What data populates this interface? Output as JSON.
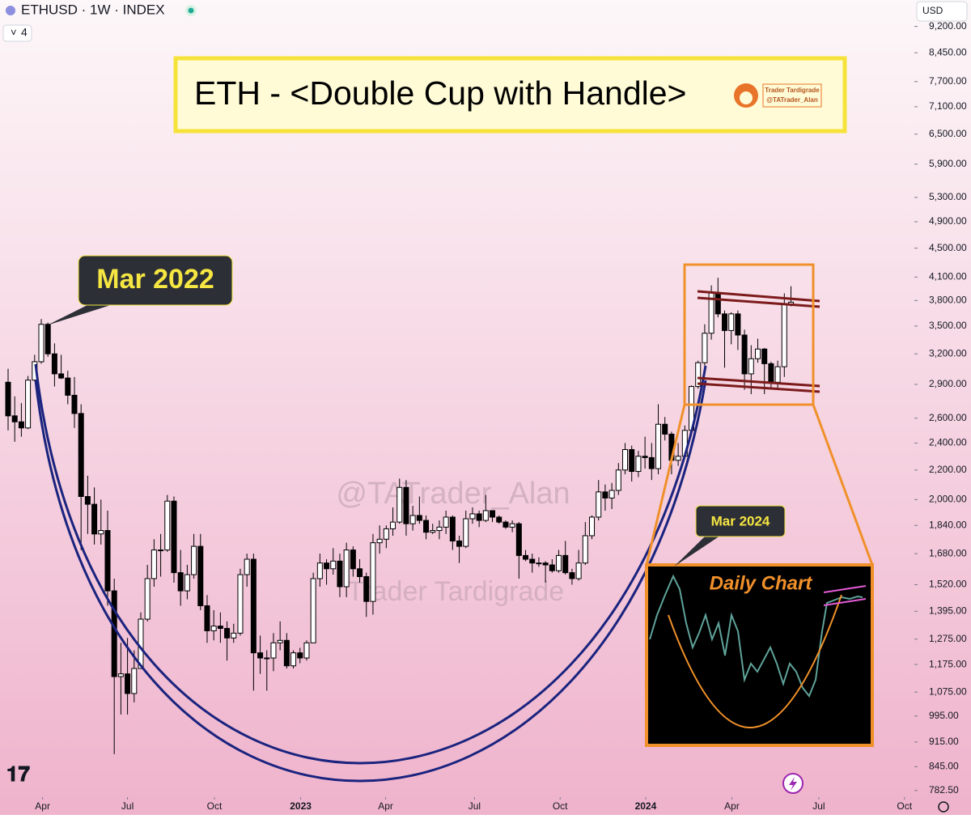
{
  "chart_data": {
    "type": "candlestick",
    "title": "ETHUSD · 1W · INDEX",
    "indicator_count": "4",
    "currency": "USD",
    "log_scale": true,
    "up_color": "#ffffff",
    "down_color": "#000000",
    "wick_color": "#000000",
    "open": [
      2920,
      2620,
      2570,
      2520,
      2940,
      3120,
      3520,
      3200,
      3000,
      2960,
      2800,
      2640,
      2020,
      1970,
      1790,
      1810,
      1490,
      1130,
      1140,
      1070,
      1160,
      1360,
      1550,
      1700,
      1700,
      1990,
      1580,
      1490,
      1570,
      1720,
      1420,
      1310,
      1330,
      1320,
      1280,
      1300,
      1570,
      1650,
      1220,
      1200,
      1200,
      1260,
      1270,
      1170,
      1220,
      1200,
      1260,
      1550,
      1630,
      1600,
      1640,
      1510,
      1700,
      1600,
      1560,
      1440,
      1740,
      1760,
      1820,
      1860,
      2080,
      1850,
      1900,
      1870,
      1800,
      1810,
      1830,
      1890,
      1750,
      1720,
      1880,
      1910,
      1870,
      1930,
      1890,
      1860,
      1830,
      1850,
      1670,
      1650,
      1630,
      1630,
      1620,
      1590,
      1670,
      1580,
      1550,
      1630,
      1780,
      1890,
      2050,
      2010,
      2060,
      2200,
      2350,
      2190,
      2300,
      2290,
      2210,
      2550,
      2470,
      2270,
      2300,
      2500,
      2880,
      3110,
      3420,
      3900,
      3640,
      3450,
      3640,
      3400,
      3000,
      3150,
      3250,
      3100,
      2920,
      3070,
      3750
    ],
    "high": [
      3050,
      2790,
      2730,
      2980,
      3190,
      3580,
      3540,
      3310,
      3190,
      3030,
      2970,
      2720,
      2160,
      2080,
      2000,
      1930,
      1550,
      1260,
      1280,
      1230,
      1390,
      1620,
      1760,
      1790,
      2030,
      2020,
      1700,
      1620,
      1790,
      1790,
      1470,
      1400,
      1390,
      1350,
      1340,
      1600,
      1680,
      1680,
      1290,
      1230,
      1300,
      1350,
      1300,
      1230,
      1240,
      1270,
      1580,
      1680,
      1650,
      1710,
      1680,
      1740,
      1720,
      1650,
      1580,
      1790,
      1840,
      1840,
      1950,
      2140,
      2130,
      1960,
      2020,
      1900,
      1850,
      1870,
      1930,
      1900,
      1780,
      1930,
      1950,
      1930,
      2030,
      1930,
      1900,
      1870,
      1870,
      1860,
      1700,
      1680,
      1660,
      1640,
      1650,
      1700,
      1750,
      1600,
      1700,
      1860,
      1900,
      2130,
      2100,
      2110,
      2250,
      2400,
      2380,
      2340,
      2450,
      2400,
      2720,
      2610,
      2490,
      2400,
      2540,
      2890,
      3130,
      3520,
      3990,
      4090,
      3680,
      3660,
      3680,
      3460,
      3290,
      3360,
      3260,
      3120,
      3130,
      3890,
      3980
    ],
    "low": [
      2500,
      2410,
      2450,
      2510,
      2930,
      3100,
      3170,
      2880,
      2950,
      2720,
      2520,
      1700,
      1790,
      1730,
      1730,
      1420,
      880,
      1000,
      1000,
      1040,
      1160,
      1350,
      1510,
      1560,
      1690,
      1530,
      1420,
      1450,
      1550,
      1400,
      1260,
      1270,
      1260,
      1190,
      1260,
      1290,
      1510,
      1080,
      1140,
      1080,
      1150,
      1230,
      1160,
      1160,
      1180,
      1190,
      1260,
      1510,
      1520,
      1570,
      1460,
      1460,
      1560,
      1530,
      1370,
      1380,
      1680,
      1710,
      1780,
      1850,
      1780,
      1810,
      1850,
      1760,
      1790,
      1760,
      1790,
      1700,
      1630,
      1710,
      1850,
      1830,
      1860,
      1860,
      1850,
      1820,
      1800,
      1550,
      1640,
      1580,
      1610,
      1530,
      1580,
      1580,
      1570,
      1520,
      1540,
      1620,
      1760,
      1870,
      1930,
      1940,
      2030,
      2170,
      2120,
      2150,
      2210,
      2130,
      2170,
      2420,
      2170,
      2230,
      2290,
      2480,
      2860,
      3060,
      3350,
      3600,
      3060,
      3300,
      3240,
      2850,
      2810,
      3110,
      2810,
      2860,
      2860,
      2970,
      3730
    ],
    "close": [
      2620,
      2570,
      2520,
      2940,
      3120,
      3520,
      3200,
      3000,
      2960,
      2800,
      2640,
      2020,
      1970,
      1790,
      1810,
      1490,
      1130,
      1140,
      1070,
      1160,
      1360,
      1550,
      1700,
      1700,
      1990,
      1580,
      1490,
      1570,
      1720,
      1420,
      1310,
      1330,
      1320,
      1280,
      1300,
      1570,
      1650,
      1220,
      1200,
      1200,
      1260,
      1270,
      1170,
      1220,
      1200,
      1260,
      1550,
      1630,
      1600,
      1640,
      1510,
      1700,
      1600,
      1560,
      1440,
      1740,
      1760,
      1820,
      1860,
      2080,
      1850,
      1900,
      1870,
      1800,
      1810,
      1830,
      1890,
      1750,
      1720,
      1880,
      1910,
      1870,
      1930,
      1890,
      1860,
      1830,
      1850,
      1670,
      1650,
      1630,
      1630,
      1620,
      1590,
      1670,
      1580,
      1550,
      1630,
      1780,
      1890,
      2050,
      2010,
      2060,
      2200,
      2350,
      2190,
      2300,
      2290,
      2210,
      2550,
      2470,
      2270,
      2300,
      2500,
      2880,
      3110,
      3420,
      3900,
      3640,
      3450,
      3640,
      3400,
      3000,
      3150,
      3250,
      3100,
      2920,
      3070,
      3750,
      3780
    ],
    "xlim": [
      -1.22,
      136.6
    ],
    "xticks": [
      {
        "value": 5.2,
        "label": "Apr"
      },
      {
        "value": 18.0,
        "label": "Jul"
      },
      {
        "value": 31.1,
        "label": "Oct"
      },
      {
        "value": 44.1,
        "label": "2023"
      },
      {
        "value": 56.9,
        "label": "Apr"
      },
      {
        "value": 70.3,
        "label": "Jul"
      },
      {
        "value": 83.2,
        "label": "Oct"
      },
      {
        "value": 96.1,
        "label": "2024"
      },
      {
        "value": 109.1,
        "label": "Apr"
      },
      {
        "value": 122.2,
        "label": "Jul"
      },
      {
        "value": 135.1,
        "label": "Oct"
      }
    ],
    "ylim": [
      766,
      9385
    ],
    "yticks": [
      {
        "value": 782.5,
        "label": "782.50"
      },
      {
        "value": 845,
        "label": "845.00"
      },
      {
        "value": 915,
        "label": "915.00"
      },
      {
        "value": 995,
        "label": "995.00"
      },
      {
        "value": 1075,
        "label": "1,075.00"
      },
      {
        "value": 1175,
        "label": "1,175.00"
      },
      {
        "value": 1275,
        "label": "1,275.00"
      },
      {
        "value": 1395,
        "label": "1,395.00"
      },
      {
        "value": 1520,
        "label": "1,520.00"
      },
      {
        "value": 1680,
        "label": "1,680.00"
      },
      {
        "value": 1840,
        "label": "1,840.00"
      },
      {
        "value": 2000,
        "label": "2,000.00"
      },
      {
        "value": 2200,
        "label": "2,200.00"
      },
      {
        "value": 2400,
        "label": "2,400.00"
      },
      {
        "value": 2600,
        "label": "2,600.00"
      },
      {
        "value": 2900,
        "label": "2,900.00"
      },
      {
        "value": 3200,
        "label": "3,200.00"
      },
      {
        "value": 3500,
        "label": "3,500.00"
      },
      {
        "value": 3800,
        "label": "3,800.00"
      },
      {
        "value": 4100,
        "label": "4,100.00"
      },
      {
        "value": 4500,
        "label": "4,500.00"
      },
      {
        "value": 4900,
        "label": "4,900.00"
      },
      {
        "value": 5300,
        "label": "5,300.00"
      },
      {
        "value": 5900,
        "label": "5,900.00"
      },
      {
        "value": 6500,
        "label": "6,500.00"
      },
      {
        "value": 7100,
        "label": "7,100.00"
      },
      {
        "value": 7700,
        "label": "7,700.00"
      },
      {
        "value": 8450,
        "label": "8,450.00"
      },
      {
        "value": 9200,
        "label": "9,200.00"
      }
    ],
    "annotations": {
      "headline": "ETH - <Double Cup with Handle>",
      "logo_name": "Trader Tardigrade",
      "logo_handle": "@TATrader_Alan",
      "peak_label": "Mar 2022",
      "inset_title": "Daily Chart",
      "inset_label": "Mar 2024",
      "watermark_handle": "@TATrader_Alan",
      "watermark_name": "Trader Tardigrade"
    }
  }
}
